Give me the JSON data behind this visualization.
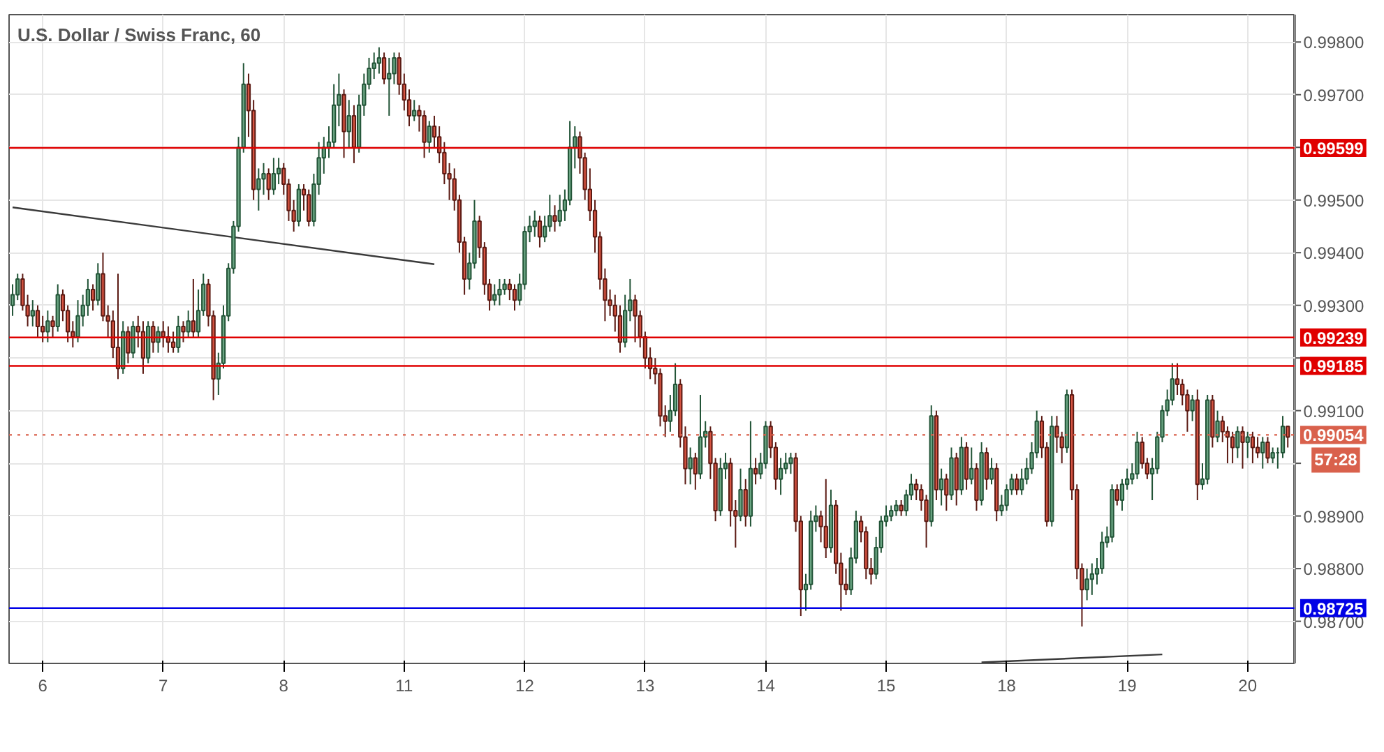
{
  "chart_data": {
    "type": "candlestick",
    "title": "U.S. Dollar / Swiss Franc, 60",
    "categories": [
      null,
      null,
      null,
      null,
      null,
      null,
      "6",
      null,
      null,
      null,
      null,
      null,
      null,
      null,
      null,
      null,
      null,
      null,
      null,
      null,
      null,
      null,
      null,
      null,
      null,
      null,
      null,
      null,
      null,
      null,
      "7",
      null,
      null,
      null,
      null,
      null,
      null,
      null,
      null,
      null,
      null,
      null,
      null,
      null,
      null,
      null,
      null,
      null,
      null,
      null,
      null,
      null,
      null,
      null,
      "8",
      null,
      null,
      null,
      null,
      null,
      null,
      null,
      null,
      null,
      null,
      null,
      null,
      null,
      null,
      null,
      null,
      null,
      null,
      null,
      null,
      null,
      null,
      null,
      "11",
      null,
      null,
      null,
      null,
      null,
      null,
      null,
      null,
      null,
      null,
      null,
      null,
      null,
      null,
      null,
      null,
      null,
      null,
      null,
      null,
      null,
      null,
      null,
      "12",
      null,
      null,
      null,
      null,
      null,
      null,
      null,
      null,
      null,
      null,
      null,
      null,
      null,
      null,
      null,
      null,
      null,
      null,
      null,
      null,
      null,
      null,
      null,
      "13",
      null,
      null,
      null,
      null,
      null,
      null,
      null,
      null,
      null,
      null,
      null,
      null,
      null,
      null,
      null,
      null,
      null,
      null,
      null,
      null,
      null,
      null,
      null,
      "14",
      null,
      null,
      null,
      null,
      null,
      null,
      null,
      null,
      null,
      null,
      null,
      null,
      null,
      null,
      null,
      null,
      null,
      null,
      null,
      null,
      null,
      null,
      null,
      "15",
      null,
      null,
      null,
      null,
      null,
      null,
      null,
      null,
      null,
      null,
      null,
      null,
      null,
      null,
      null,
      null,
      null,
      null,
      null,
      null,
      null,
      null,
      null,
      "18",
      null,
      null,
      null,
      null,
      null,
      null,
      null,
      null,
      null,
      null,
      null,
      null,
      null,
      null,
      null,
      null,
      null,
      null,
      null,
      null,
      null,
      null,
      null,
      "19",
      null,
      null,
      null,
      null,
      null,
      null,
      null,
      null,
      null,
      null,
      null,
      null,
      null,
      null,
      null,
      null,
      null,
      null,
      null,
      null,
      null,
      null,
      null,
      "20",
      null,
      null,
      null,
      null,
      null,
      null,
      null,
      null
    ],
    "ohlc": [
      [
        0.993,
        0.9934,
        0.9928,
        0.9932
      ],
      [
        0.9932,
        0.9936,
        0.9931,
        0.9935
      ],
      [
        0.9935,
        0.9936,
        0.9929,
        0.993
      ],
      [
        0.993,
        0.9932,
        0.9926,
        0.9928
      ],
      [
        0.9928,
        0.9931,
        0.9926,
        0.9929
      ],
      [
        0.9929,
        0.993,
        0.9924,
        0.9926
      ],
      [
        0.9926,
        0.9928,
        0.9923,
        0.9925
      ],
      [
        0.9925,
        0.9929,
        0.9923,
        0.9927
      ],
      [
        0.9927,
        0.9928,
        0.9924,
        0.9926
      ],
      [
        0.9926,
        0.9934,
        0.9925,
        0.9932
      ],
      [
        0.9932,
        0.9933,
        0.9927,
        0.9929
      ],
      [
        0.9929,
        0.993,
        0.9923,
        0.9925
      ],
      [
        0.9925,
        0.9927,
        0.9922,
        0.9924
      ],
      [
        0.9924,
        0.9931,
        0.9923,
        0.9928
      ],
      [
        0.9928,
        0.9932,
        0.9926,
        0.993
      ],
      [
        0.993,
        0.9935,
        0.9928,
        0.9933
      ],
      [
        0.9933,
        0.9934,
        0.9929,
        0.9931
      ],
      [
        0.9931,
        0.9938,
        0.993,
        0.9936
      ],
      [
        0.9936,
        0.994,
        0.9927,
        0.9928
      ],
      [
        0.9928,
        0.993,
        0.9924,
        0.9927
      ],
      [
        0.9927,
        0.9929,
        0.992,
        0.9922
      ],
      [
        0.9922,
        0.9936,
        0.9916,
        0.9918
      ],
      [
        0.9918,
        0.9927,
        0.9917,
        0.9925
      ],
      [
        0.9925,
        0.9926,
        0.9919,
        0.9921
      ],
      [
        0.9921,
        0.9927,
        0.992,
        0.9926
      ],
      [
        0.9926,
        0.9928,
        0.9922,
        0.9925
      ],
      [
        0.9925,
        0.9927,
        0.9917,
        0.992
      ],
      [
        0.992,
        0.9927,
        0.9919,
        0.9926
      ],
      [
        0.9926,
        0.9927,
        0.9921,
        0.9923
      ],
      [
        0.9923,
        0.9926,
        0.9921,
        0.9925
      ],
      [
        0.9925,
        0.9927,
        0.9922,
        0.9924
      ],
      [
        0.9924,
        0.9926,
        0.9921,
        0.9923
      ],
      [
        0.9923,
        0.9925,
        0.9921,
        0.9922
      ],
      [
        0.9922,
        0.9928,
        0.9921,
        0.9926
      ],
      [
        0.9926,
        0.9927,
        0.9923,
        0.9925
      ],
      [
        0.9925,
        0.9929,
        0.9924,
        0.9927
      ],
      [
        0.9927,
        0.9935,
        0.9924,
        0.9925
      ],
      [
        0.9925,
        0.9933,
        0.9924,
        0.9929
      ],
      [
        0.9929,
        0.9936,
        0.9928,
        0.9934
      ],
      [
        0.9934,
        0.9935,
        0.9926,
        0.9928
      ],
      [
        0.9928,
        0.9929,
        0.9912,
        0.9916
      ],
      [
        0.9916,
        0.9921,
        0.9913,
        0.9919
      ],
      [
        0.9919,
        0.993,
        0.9918,
        0.9928
      ],
      [
        0.9928,
        0.9938,
        0.9927,
        0.9937
      ],
      [
        0.9937,
        0.9946,
        0.9936,
        0.9945
      ],
      [
        0.9945,
        0.9962,
        0.9944,
        0.996
      ],
      [
        0.996,
        0.9976,
        0.9959,
        0.9972
      ],
      [
        0.9972,
        0.9974,
        0.9962,
        0.9967
      ],
      [
        0.9967,
        0.9969,
        0.995,
        0.9952
      ],
      [
        0.9952,
        0.9956,
        0.9948,
        0.9954
      ],
      [
        0.9954,
        0.9957,
        0.9951,
        0.9955
      ],
      [
        0.9955,
        0.9956,
        0.995,
        0.9952
      ],
      [
        0.9952,
        0.9958,
        0.9951,
        0.9955
      ],
      [
        0.9955,
        0.9958,
        0.9953,
        0.9956
      ],
      [
        0.9956,
        0.9957,
        0.9951,
        0.9953
      ],
      [
        0.9953,
        0.9954,
        0.9946,
        0.9948
      ],
      [
        0.9948,
        0.995,
        0.9944,
        0.9946
      ],
      [
        0.9946,
        0.9953,
        0.9945,
        0.9952
      ],
      [
        0.9952,
        0.9953,
        0.9948,
        0.9951
      ],
      [
        0.9951,
        0.9952,
        0.9945,
        0.9946
      ],
      [
        0.9946,
        0.9955,
        0.9945,
        0.9953
      ],
      [
        0.9953,
        0.9961,
        0.9951,
        0.9958
      ],
      [
        0.9958,
        0.9962,
        0.9955,
        0.996
      ],
      [
        0.996,
        0.9964,
        0.9958,
        0.9961
      ],
      [
        0.9961,
        0.9972,
        0.996,
        0.9968
      ],
      [
        0.9968,
        0.9974,
        0.9964,
        0.997
      ],
      [
        0.997,
        0.9971,
        0.9958,
        0.9963
      ],
      [
        0.9963,
        0.9969,
        0.996,
        0.9966
      ],
      [
        0.9966,
        0.9968,
        0.9957,
        0.996
      ],
      [
        0.996,
        0.997,
        0.9959,
        0.9968
      ],
      [
        0.9968,
        0.9974,
        0.9966,
        0.9972
      ],
      [
        0.9972,
        0.9977,
        0.9971,
        0.9975
      ],
      [
        0.9975,
        0.9978,
        0.9973,
        0.9976
      ],
      [
        0.9976,
        0.9979,
        0.9974,
        0.9977
      ],
      [
        0.9977,
        0.9978,
        0.9972,
        0.9973
      ],
      [
        0.9973,
        0.9977,
        0.9966,
        0.9974
      ],
      [
        0.9974,
        0.9978,
        0.9972,
        0.9977
      ],
      [
        0.9977,
        0.9978,
        0.997,
        0.9972
      ],
      [
        0.9972,
        0.9974,
        0.9967,
        0.9969
      ],
      [
        0.9969,
        0.9971,
        0.9964,
        0.9966
      ],
      [
        0.9966,
        0.9969,
        0.9965,
        0.9967
      ],
      [
        0.9967,
        0.9968,
        0.9963,
        0.9966
      ],
      [
        0.9966,
        0.9967,
        0.9958,
        0.9961
      ],
      [
        0.9961,
        0.9965,
        0.9959,
        0.9964
      ],
      [
        0.9964,
        0.9966,
        0.996,
        0.9962
      ],
      [
        0.9962,
        0.9964,
        0.9957,
        0.9959
      ],
      [
        0.9959,
        0.9961,
        0.9953,
        0.9955
      ],
      [
        0.9955,
        0.9957,
        0.995,
        0.9954
      ],
      [
        0.9954,
        0.9956,
        0.9948,
        0.995
      ],
      [
        0.995,
        0.9951,
        0.994,
        0.9942
      ],
      [
        0.9942,
        0.9943,
        0.9932,
        0.9935
      ],
      [
        0.9935,
        0.994,
        0.9933,
        0.9938
      ],
      [
        0.9938,
        0.995,
        0.9937,
        0.9946
      ],
      [
        0.9946,
        0.9947,
        0.9939,
        0.9941
      ],
      [
        0.9941,
        0.9942,
        0.9932,
        0.9934
      ],
      [
        0.9934,
        0.9935,
        0.9929,
        0.9931
      ],
      [
        0.9931,
        0.9934,
        0.993,
        0.9932
      ],
      [
        0.9932,
        0.9935,
        0.993,
        0.9933
      ],
      [
        0.9933,
        0.9935,
        0.9932,
        0.9934
      ],
      [
        0.9934,
        0.9935,
        0.9931,
        0.9933
      ],
      [
        0.9933,
        0.9934,
        0.9929,
        0.9931
      ],
      [
        0.9931,
        0.9936,
        0.993,
        0.9934
      ],
      [
        0.9934,
        0.9945,
        0.9933,
        0.9944
      ],
      [
        0.9944,
        0.9947,
        0.9942,
        0.9945
      ],
      [
        0.9945,
        0.9948,
        0.9943,
        0.9946
      ],
      [
        0.9946,
        0.9947,
        0.9941,
        0.9943
      ],
      [
        0.9943,
        0.9947,
        0.9942,
        0.9945
      ],
      [
        0.9945,
        0.9951,
        0.9944,
        0.9947
      ],
      [
        0.9947,
        0.9949,
        0.9944,
        0.9946
      ],
      [
        0.9946,
        0.9951,
        0.9945,
        0.9948
      ],
      [
        0.9948,
        0.9952,
        0.9946,
        0.995
      ],
      [
        0.995,
        0.9965,
        0.9949,
        0.996
      ],
      [
        0.996,
        0.9964,
        0.9956,
        0.9962
      ],
      [
        0.9962,
        0.9963,
        0.9955,
        0.9958
      ],
      [
        0.9958,
        0.9959,
        0.995,
        0.9952
      ],
      [
        0.9952,
        0.9956,
        0.9946,
        0.9948
      ],
      [
        0.9948,
        0.995,
        0.994,
        0.9943
      ],
      [
        0.9943,
        0.9944,
        0.9933,
        0.9935
      ],
      [
        0.9935,
        0.9937,
        0.9927,
        0.9931
      ],
      [
        0.9931,
        0.9933,
        0.9928,
        0.993
      ],
      [
        0.993,
        0.9932,
        0.9925,
        0.9928
      ],
      [
        0.9928,
        0.993,
        0.9921,
        0.9923
      ],
      [
        0.9923,
        0.9932,
        0.9922,
        0.9929
      ],
      [
        0.9929,
        0.9935,
        0.9927,
        0.9931
      ],
      [
        0.9931,
        0.9932,
        0.9923,
        0.9928
      ],
      [
        0.9928,
        0.9929,
        0.9922,
        0.9924
      ],
      [
        0.9924,
        0.9925,
        0.9918,
        0.992
      ],
      [
        0.992,
        0.9922,
        0.9916,
        0.9918
      ],
      [
        0.9918,
        0.992,
        0.9915,
        0.9917
      ],
      [
        0.9917,
        0.9918,
        0.9907,
        0.9909
      ],
      [
        0.9909,
        0.9911,
        0.9905,
        0.9908
      ],
      [
        0.9908,
        0.9913,
        0.9906,
        0.991
      ],
      [
        0.991,
        0.9919,
        0.9909,
        0.9915
      ],
      [
        0.9915,
        0.9916,
        0.9903,
        0.9905
      ],
      [
        0.9905,
        0.9907,
        0.9896,
        0.9899
      ],
      [
        0.9899,
        0.9903,
        0.9896,
        0.9901
      ],
      [
        0.9901,
        0.9902,
        0.9895,
        0.9898
      ],
      [
        0.9898,
        0.9913,
        0.9897,
        0.9905
      ],
      [
        0.9905,
        0.9908,
        0.9903,
        0.9906
      ],
      [
        0.9906,
        0.9907,
        0.9897,
        0.99
      ],
      [
        0.99,
        0.9901,
        0.9889,
        0.9891
      ],
      [
        0.9891,
        0.9901,
        0.989,
        0.9899
      ],
      [
        0.9899,
        0.9902,
        0.9897,
        0.99
      ],
      [
        0.99,
        0.9901,
        0.9888,
        0.9891
      ],
      [
        0.9891,
        0.9893,
        0.9884,
        0.989
      ],
      [
        0.989,
        0.9899,
        0.9889,
        0.9895
      ],
      [
        0.9895,
        0.9897,
        0.9888,
        0.989
      ],
      [
        0.989,
        0.9908,
        0.9888,
        0.9899
      ],
      [
        0.9899,
        0.9901,
        0.9896,
        0.9898
      ],
      [
        0.9898,
        0.9902,
        0.9897,
        0.99
      ],
      [
        0.99,
        0.9908,
        0.9899,
        0.9907
      ],
      [
        0.9907,
        0.9908,
        0.9901,
        0.9903
      ],
      [
        0.9903,
        0.9904,
        0.9895,
        0.9897
      ],
      [
        0.9897,
        0.9901,
        0.9894,
        0.9899
      ],
      [
        0.9899,
        0.9902,
        0.9898,
        0.99
      ],
      [
        0.99,
        0.9902,
        0.9898,
        0.9901
      ],
      [
        0.9901,
        0.9902,
        0.9887,
        0.9889
      ],
      [
        0.9889,
        0.989,
        0.9871,
        0.9876
      ],
      [
        0.9876,
        0.9879,
        0.9872,
        0.9877
      ],
      [
        0.9877,
        0.9891,
        0.9876,
        0.9889
      ],
      [
        0.9889,
        0.9892,
        0.9887,
        0.989
      ],
      [
        0.989,
        0.9891,
        0.9885,
        0.9888
      ],
      [
        0.9888,
        0.9897,
        0.9882,
        0.9884
      ],
      [
        0.9884,
        0.9895,
        0.9883,
        0.9892
      ],
      [
        0.9892,
        0.9893,
        0.9879,
        0.9881
      ],
      [
        0.9881,
        0.9883,
        0.9872,
        0.9877
      ],
      [
        0.9877,
        0.988,
        0.9875,
        0.9876
      ],
      [
        0.9876,
        0.9884,
        0.9875,
        0.9882
      ],
      [
        0.9882,
        0.9891,
        0.9881,
        0.9889
      ],
      [
        0.9889,
        0.989,
        0.9885,
        0.9887
      ],
      [
        0.9887,
        0.9888,
        0.9878,
        0.988
      ],
      [
        0.988,
        0.9882,
        0.9877,
        0.9879
      ],
      [
        0.9879,
        0.9886,
        0.9878,
        0.9884
      ],
      [
        0.9884,
        0.989,
        0.9883,
        0.9889
      ],
      [
        0.9889,
        0.9892,
        0.9888,
        0.989
      ],
      [
        0.989,
        0.9892,
        0.9889,
        0.9891
      ],
      [
        0.9891,
        0.9893,
        0.989,
        0.9892
      ],
      [
        0.9892,
        0.9893,
        0.989,
        0.9891
      ],
      [
        0.9891,
        0.9895,
        0.989,
        0.9894
      ],
      [
        0.9894,
        0.9898,
        0.9893,
        0.9896
      ],
      [
        0.9896,
        0.9897,
        0.9893,
        0.9895
      ],
      [
        0.9895,
        0.9896,
        0.9891,
        0.9893
      ],
      [
        0.9893,
        0.9894,
        0.9884,
        0.9889
      ],
      [
        0.9889,
        0.9911,
        0.9888,
        0.9909
      ],
      [
        0.9909,
        0.991,
        0.9893,
        0.9895
      ],
      [
        0.9895,
        0.9899,
        0.9892,
        0.9897
      ],
      [
        0.9897,
        0.9898,
        0.9891,
        0.9894
      ],
      [
        0.9894,
        0.9903,
        0.9893,
        0.9901
      ],
      [
        0.9901,
        0.9902,
        0.9892,
        0.9895
      ],
      [
        0.9895,
        0.9905,
        0.9894,
        0.9903
      ],
      [
        0.9903,
        0.9904,
        0.9895,
        0.9897
      ],
      [
        0.9897,
        0.9903,
        0.9896,
        0.9899
      ],
      [
        0.9899,
        0.99,
        0.9891,
        0.9893
      ],
      [
        0.9893,
        0.9904,
        0.9892,
        0.9902
      ],
      [
        0.9902,
        0.9903,
        0.9895,
        0.9897
      ],
      [
        0.9897,
        0.9901,
        0.9896,
        0.9899
      ],
      [
        0.9899,
        0.99,
        0.9889,
        0.9891
      ],
      [
        0.9891,
        0.9894,
        0.989,
        0.9892
      ],
      [
        0.9892,
        0.9896,
        0.9891,
        0.9895
      ],
      [
        0.9895,
        0.9898,
        0.9894,
        0.9897
      ],
      [
        0.9897,
        0.9898,
        0.9894,
        0.9895
      ],
      [
        0.9895,
        0.9899,
        0.9894,
        0.9897
      ],
      [
        0.9897,
        0.9901,
        0.9896,
        0.9899
      ],
      [
        0.9899,
        0.9904,
        0.9898,
        0.9902
      ],
      [
        0.9902,
        0.991,
        0.9901,
        0.9908
      ],
      [
        0.9908,
        0.9909,
        0.9901,
        0.9903
      ],
      [
        0.9903,
        0.9904,
        0.9888,
        0.9889
      ],
      [
        0.9889,
        0.9909,
        0.9888,
        0.9907
      ],
      [
        0.9907,
        0.9909,
        0.9902,
        0.9905
      ],
      [
        0.9905,
        0.9906,
        0.99,
        0.9903
      ],
      [
        0.9903,
        0.9914,
        0.9902,
        0.9913
      ],
      [
        0.9913,
        0.9914,
        0.9893,
        0.9895
      ],
      [
        0.9895,
        0.9896,
        0.9878,
        0.988
      ],
      [
        0.988,
        0.9881,
        0.9869,
        0.9876
      ],
      [
        0.9876,
        0.988,
        0.9874,
        0.9878
      ],
      [
        0.9878,
        0.9881,
        0.9875,
        0.9879
      ],
      [
        0.9879,
        0.9882,
        0.9877,
        0.988
      ],
      [
        0.988,
        0.9887,
        0.9879,
        0.9885
      ],
      [
        0.9885,
        0.9888,
        0.9884,
        0.9886
      ],
      [
        0.9886,
        0.9896,
        0.9885,
        0.9895
      ],
      [
        0.9895,
        0.9896,
        0.9892,
        0.9893
      ],
      [
        0.9893,
        0.9897,
        0.9891,
        0.9896
      ],
      [
        0.9896,
        0.9899,
        0.9895,
        0.9897
      ],
      [
        0.9897,
        0.99,
        0.9896,
        0.9898
      ],
      [
        0.9898,
        0.9906,
        0.9897,
        0.9904
      ],
      [
        0.9904,
        0.9905,
        0.9899,
        0.99
      ],
      [
        0.99,
        0.9901,
        0.9897,
        0.9898
      ],
      [
        0.9898,
        0.9901,
        0.9893,
        0.9899
      ],
      [
        0.9899,
        0.9906,
        0.9898,
        0.9905
      ],
      [
        0.9905,
        0.9911,
        0.9904,
        0.991
      ],
      [
        0.991,
        0.9914,
        0.9909,
        0.9912
      ],
      [
        0.9912,
        0.9919,
        0.9911,
        0.9916
      ],
      [
        0.9916,
        0.9919,
        0.9913,
        0.9915
      ],
      [
        0.9915,
        0.9916,
        0.9911,
        0.9913
      ],
      [
        0.9913,
        0.9914,
        0.9906,
        0.991
      ],
      [
        0.991,
        0.9913,
        0.9908,
        0.9912
      ],
      [
        0.9912,
        0.9914,
        0.9893,
        0.9896
      ],
      [
        0.9896,
        0.99,
        0.9895,
        0.9897
      ],
      [
        0.9897,
        0.9913,
        0.9896,
        0.9912
      ],
      [
        0.9912,
        0.9913,
        0.9903,
        0.9905
      ],
      [
        0.9905,
        0.991,
        0.9904,
        0.9908
      ],
      [
        0.9908,
        0.9909,
        0.9904,
        0.9906
      ],
      [
        0.9906,
        0.9907,
        0.99,
        0.9905
      ],
      [
        0.9905,
        0.9906,
        0.99,
        0.9903
      ],
      [
        0.9903,
        0.9907,
        0.9901,
        0.9906
      ],
      [
        0.9906,
        0.9907,
        0.9899,
        0.9904
      ],
      [
        0.9904,
        0.9906,
        0.9901,
        0.9905
      ],
      [
        0.9905,
        0.9906,
        0.99,
        0.9903
      ],
      [
        0.9903,
        0.9905,
        0.9901,
        0.9902
      ],
      [
        0.9902,
        0.9905,
        0.9899,
        0.9904
      ],
      [
        0.9904,
        0.9905,
        0.99,
        0.9901
      ],
      [
        0.9901,
        0.9903,
        0.99,
        0.9902
      ],
      [
        0.9902,
        0.9903,
        0.9899,
        0.9902
      ],
      [
        0.9902,
        0.9909,
        0.9901,
        0.9907
      ],
      [
        0.9907,
        0.9907,
        0.9903,
        0.9905
      ]
    ],
    "series": [
      {
        "type": "line",
        "color": "#3a3a3a",
        "values": [
          0.99486,
          null,
          null,
          null,
          null,
          null,
          null,
          null,
          null,
          null,
          null,
          null,
          null,
          null,
          null,
          null,
          null,
          null,
          null,
          null,
          null,
          null,
          null,
          null,
          null,
          null,
          null,
          null,
          null,
          null,
          null,
          null,
          null,
          null,
          null,
          null,
          null,
          null,
          null,
          null,
          null,
          null,
          null,
          null,
          null,
          null,
          null,
          null,
          null,
          null,
          null,
          null,
          null,
          null,
          null,
          null,
          null,
          null,
          null,
          null,
          null,
          null,
          null,
          null,
          null,
          null,
          null,
          null,
          null,
          null,
          null,
          null,
          null,
          null,
          null,
          null,
          null,
          null,
          null,
          null,
          null,
          null,
          null,
          null,
          0.99378,
          null,
          null,
          null,
          null,
          null,
          null,
          null,
          null,
          null,
          null,
          null,
          null,
          null,
          null,
          null,
          null,
          null,
          null,
          null,
          null,
          null,
          null,
          null,
          null,
          null,
          null,
          null,
          null,
          null,
          null,
          null,
          null,
          null,
          null,
          null,
          null,
          null,
          null,
          null,
          null,
          null,
          null,
          null,
          null,
          null,
          null,
          null,
          null,
          null,
          null,
          null,
          null,
          null,
          null,
          null,
          null,
          null,
          null,
          null,
          null,
          null,
          null,
          null,
          null,
          null,
          null,
          null,
          null,
          null,
          null,
          null,
          null,
          null,
          null,
          null,
          null,
          null,
          null,
          null,
          null,
          null,
          null,
          null,
          null,
          null,
          null,
          null,
          null,
          null,
          null,
          null,
          null,
          null,
          null,
          null,
          null,
          null,
          null,
          null,
          null,
          null,
          null,
          null,
          null,
          null,
          null,
          null,
          null,
          null,
          null,
          null,
          null,
          null,
          null,
          null,
          null,
          null,
          null,
          null,
          null,
          null,
          null,
          null,
          null,
          null,
          null,
          null,
          null,
          null,
          null,
          null,
          null,
          null,
          null,
          null,
          null,
          null,
          null,
          null,
          null,
          null,
          null,
          null,
          null,
          null,
          null,
          null,
          null,
          null,
          null,
          null,
          null,
          null,
          null,
          null,
          null,
          null,
          null,
          null,
          null,
          null,
          null,
          null,
          null,
          null,
          null,
          null,
          null,
          null,
          null
        ]
      },
      {
        "type": "line",
        "color": "#3a3a3a",
        "values": [
          null,
          null,
          null,
          null,
          null,
          null,
          null,
          null,
          null,
          null,
          null,
          null,
          null,
          null,
          null,
          null,
          null,
          null,
          null,
          null,
          null,
          null,
          null,
          null,
          null,
          null,
          null,
          null,
          null,
          null,
          null,
          null,
          null,
          null,
          null,
          null,
          null,
          null,
          null,
          null,
          null,
          null,
          null,
          null,
          null,
          null,
          null,
          null,
          null,
          null,
          null,
          null,
          null,
          null,
          null,
          null,
          null,
          null,
          null,
          null,
          null,
          null,
          null,
          null,
          null,
          null,
          null,
          null,
          null,
          null,
          null,
          null,
          null,
          null,
          null,
          null,
          null,
          null,
          null,
          null,
          null,
          null,
          null,
          null,
          null,
          null,
          null,
          null,
          null,
          null,
          null,
          null,
          null,
          null,
          null,
          null,
          null,
          null,
          null,
          null,
          null,
          null,
          null,
          null,
          null,
          null,
          null,
          null,
          null,
          null,
          null,
          null,
          null,
          null,
          null,
          null,
          null,
          null,
          null,
          null,
          null,
          null,
          null,
          null,
          null,
          null,
          null,
          null,
          null,
          null,
          null,
          null,
          null,
          null,
          null,
          null,
          null,
          null,
          null,
          null,
          null,
          null,
          null,
          null,
          null,
          null,
          null,
          null,
          null,
          null,
          null,
          null,
          null,
          null,
          null,
          null,
          null,
          null,
          null,
          null,
          null,
          null,
          null,
          null,
          null,
          null,
          null,
          null,
          null,
          null,
          null,
          null,
          null,
          null,
          null,
          null,
          null,
          null,
          null,
          null,
          null,
          null,
          null,
          null,
          null,
          null,
          null,
          null,
          null,
          null,
          null,
          null,
          null,
          0.98622,
          null,
          null,
          null,
          null,
          null,
          null,
          null,
          null,
          null,
          null,
          null,
          null,
          null,
          null,
          null,
          null,
          null,
          null,
          null,
          null,
          null,
          null,
          null,
          null,
          null,
          null,
          null,
          null,
          null,
          null,
          null,
          null,
          null,
          null,
          null,
          0.98637,
          null,
          null,
          null,
          null,
          null,
          null,
          null,
          null,
          null,
          null,
          null,
          null,
          null,
          null,
          null,
          null,
          null,
          null,
          null,
          null,
          null,
          null,
          null,
          null,
          null
        ]
      }
    ],
    "ylim": [
      0.9862,
      0.99852
    ],
    "yticks": [
      {
        "value": 0.987,
        "label": "0.98700"
      },
      {
        "value": 0.988,
        "label": "0.98800"
      },
      {
        "value": 0.989,
        "label": "0.98900"
      },
      {
        "value": 0.991,
        "label": "0.99100"
      },
      {
        "value": 0.993,
        "label": "0.99300"
      },
      {
        "value": 0.994,
        "label": "0.99400"
      },
      {
        "value": 0.995,
        "label": "0.99500"
      },
      {
        "value": 0.997,
        "label": "0.99700"
      },
      {
        "value": 0.998,
        "label": "0.99800"
      },
      {
        "value": 0.99,
        "label": null
      },
      {
        "value": 0.992,
        "label": null
      },
      {
        "value": 0.996,
        "label": null
      }
    ],
    "grid": true,
    "ref_lines": [
      {
        "axis": "y",
        "value": 0.99599,
        "label": "0.99599",
        "color": "#e00000",
        "line_style": "solid"
      },
      {
        "axis": "y",
        "value": 0.99239,
        "label": "0.99239",
        "color": "#e00000",
        "line_style": "solid"
      },
      {
        "axis": "y",
        "value": 0.99185,
        "label": "0.99185",
        "color": "#e00000",
        "line_style": "solid"
      },
      {
        "axis": "y",
        "value": 0.99054,
        "label": "0.99054",
        "color": "#d9614c",
        "line_style": "dotted"
      },
      {
        "axis": "y",
        "value": 0.98725,
        "label": "0.98725",
        "color": "#0000e6",
        "line_style": "solid"
      }
    ],
    "annotations": [
      "57:28"
    ]
  }
}
